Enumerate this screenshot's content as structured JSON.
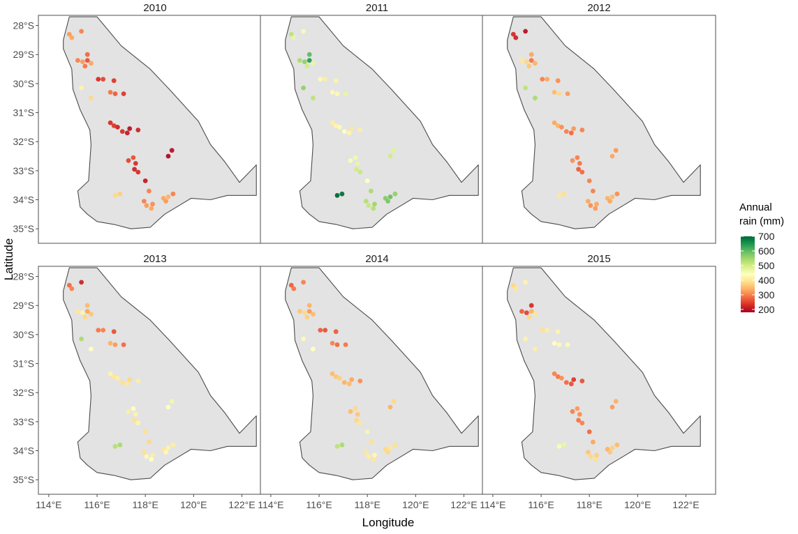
{
  "axes": {
    "xlabel": "Longitude",
    "ylabel": "Latitude",
    "xticks": [
      "114°E",
      "116°E",
      "118°E",
      "120°E",
      "122°E"
    ],
    "yticks": [
      "28°S",
      "29°S",
      "30°S",
      "31°S",
      "32°S",
      "33°S",
      "34°S",
      "35°S"
    ],
    "xlim": [
      113.8,
      123.0
    ],
    "ylim": [
      -35.5,
      -27.65
    ]
  },
  "legend": {
    "title_line1": "Annual",
    "title_line2": "rain (mm)",
    "labels": [
      "700",
      "600",
      "500",
      "400",
      "300",
      "200"
    ],
    "range": [
      180,
      700
    ],
    "colors": [
      "#006837",
      "#1a9850",
      "#66bd63",
      "#a6d96a",
      "#d9ef8b",
      "#ffffbf",
      "#fee08b",
      "#fdae61",
      "#f46d43",
      "#d73027",
      "#a50026"
    ]
  },
  "panels": [
    {
      "title": "2010"
    },
    {
      "title": "2011"
    },
    {
      "title": "2012"
    },
    {
      "title": "2013"
    },
    {
      "title": "2014"
    },
    {
      "title": "2015"
    }
  ],
  "chart_data": {
    "type": "scatter",
    "title": "",
    "xlabel": "Longitude",
    "ylabel": "Latitude",
    "facet": "year",
    "color_variable": "Annual rain (mm)",
    "region_outline": [
      [
        114.85,
        -27.7
      ],
      [
        116.0,
        -27.7
      ],
      [
        117.0,
        -28.7
      ],
      [
        118.2,
        -29.5
      ],
      [
        119.0,
        -30.2
      ],
      [
        120.2,
        -31.3
      ],
      [
        120.7,
        -32.1
      ],
      [
        121.3,
        -32.7
      ],
      [
        121.9,
        -33.4
      ],
      [
        122.6,
        -32.8
      ],
      [
        122.6,
        -33.85
      ],
      [
        121.4,
        -33.85
      ],
      [
        120.7,
        -34.0
      ],
      [
        119.9,
        -33.95
      ],
      [
        119.4,
        -34.2
      ],
      [
        118.8,
        -34.5
      ],
      [
        118.2,
        -34.95
      ],
      [
        117.4,
        -35.0
      ],
      [
        116.7,
        -34.85
      ],
      [
        116.0,
        -34.75
      ],
      [
        115.6,
        -34.5
      ],
      [
        115.3,
        -34.25
      ],
      [
        115.2,
        -33.7
      ],
      [
        115.65,
        -33.35
      ],
      [
        115.7,
        -32.7
      ],
      [
        115.75,
        -32.1
      ],
      [
        115.7,
        -31.6
      ],
      [
        115.3,
        -30.9
      ],
      [
        115.0,
        -30.2
      ],
      [
        114.95,
        -29.5
      ],
      [
        114.6,
        -28.8
      ],
      [
        114.6,
        -28.5
      ],
      [
        114.85,
        -27.7
      ]
    ],
    "sites": [
      {
        "lon": 114.85,
        "lat": -28.3
      },
      {
        "lon": 114.95,
        "lat": -28.42
      },
      {
        "lon": 115.35,
        "lat": -28.2
      },
      {
        "lon": 115.2,
        "lat": -29.2
      },
      {
        "lon": 115.4,
        "lat": -29.25
      },
      {
        "lon": 115.6,
        "lat": -29.0
      },
      {
        "lon": 115.6,
        "lat": -29.2
      },
      {
        "lon": 115.5,
        "lat": -29.4
      },
      {
        "lon": 115.75,
        "lat": -29.3
      },
      {
        "lon": 115.35,
        "lat": -30.15
      },
      {
        "lon": 115.75,
        "lat": -30.5
      },
      {
        "lon": 116.05,
        "lat": -29.85
      },
      {
        "lon": 116.25,
        "lat": -29.85
      },
      {
        "lon": 116.7,
        "lat": -29.9
      },
      {
        "lon": 116.55,
        "lat": -30.3
      },
      {
        "lon": 116.75,
        "lat": -30.35
      },
      {
        "lon": 117.1,
        "lat": -30.35
      },
      {
        "lon": 116.55,
        "lat": -31.35
      },
      {
        "lon": 116.7,
        "lat": -31.45
      },
      {
        "lon": 116.85,
        "lat": -31.5
      },
      {
        "lon": 117.05,
        "lat": -31.65
      },
      {
        "lon": 117.25,
        "lat": -31.7
      },
      {
        "lon": 117.35,
        "lat": -31.55
      },
      {
        "lon": 117.7,
        "lat": -31.6
      },
      {
        "lon": 117.3,
        "lat": -32.65
      },
      {
        "lon": 117.5,
        "lat": -32.55
      },
      {
        "lon": 117.6,
        "lat": -32.75
      },
      {
        "lon": 117.55,
        "lat": -32.95
      },
      {
        "lon": 117.7,
        "lat": -33.05
      },
      {
        "lon": 118.0,
        "lat": -33.35
      },
      {
        "lon": 118.95,
        "lat": -32.5
      },
      {
        "lon": 119.1,
        "lat": -32.3
      },
      {
        "lon": 116.75,
        "lat": -33.85
      },
      {
        "lon": 116.95,
        "lat": -33.8
      },
      {
        "lon": 118.15,
        "lat": -33.7
      },
      {
        "lon": 117.95,
        "lat": -34.05
      },
      {
        "lon": 118.05,
        "lat": -34.2
      },
      {
        "lon": 118.3,
        "lat": -34.15
      },
      {
        "lon": 118.25,
        "lat": -34.3
      },
      {
        "lon": 118.75,
        "lat": -33.95
      },
      {
        "lon": 118.95,
        "lat": -33.9
      },
      {
        "lon": 119.15,
        "lat": -33.8
      },
      {
        "lon": 118.85,
        "lat": -34.05
      }
    ],
    "series": [
      {
        "year": "2010",
        "rain_mm": [
          320,
          330,
          300,
          300,
          320,
          280,
          260,
          290,
          330,
          420,
          380,
          230,
          250,
          240,
          290,
          270,
          240,
          230,
          240,
          220,
          230,
          210,
          200,
          220,
          250,
          260,
          230,
          220,
          230,
          210,
          190,
          200,
          380,
          370,
          300,
          300,
          320,
          310,
          330,
          330,
          340,
          300,
          320
        ]
      },
      {
        "year": "2011",
        "rain_mm": [
          520,
          470,
          450,
          540,
          560,
          600,
          640,
          500,
          470,
          560,
          520,
          450,
          410,
          420,
          430,
          450,
          470,
          410,
          420,
          430,
          440,
          420,
          400,
          410,
          450,
          460,
          470,
          500,
          510,
          440,
          500,
          480,
          700,
          690,
          540,
          530,
          510,
          550,
          530,
          570,
          590,
          560,
          580
        ]
      },
      {
        "year": "2012",
        "rain_mm": [
          230,
          220,
          200,
          400,
          380,
          330,
          290,
          360,
          340,
          520,
          540,
          300,
          330,
          310,
          350,
          380,
          320,
          330,
          340,
          310,
          300,
          280,
          320,
          300,
          310,
          300,
          290,
          270,
          280,
          300,
          330,
          320,
          400,
          390,
          300,
          330,
          310,
          330,
          320,
          340,
          350,
          310,
          330
        ]
      },
      {
        "year": "2013",
        "rain_mm": [
          280,
          300,
          220,
          400,
          420,
          350,
          330,
          380,
          360,
          540,
          440,
          290,
          300,
          260,
          340,
          320,
          280,
          420,
          400,
          410,
          390,
          400,
          380,
          410,
          410,
          440,
          420,
          390,
          420,
          390,
          440,
          460,
          530,
          540,
          380,
          390,
          430,
          410,
          440,
          400,
          420,
          410,
          430
        ]
      },
      {
        "year": "2014",
        "rain_mm": [
          270,
          290,
          300,
          360,
          380,
          340,
          320,
          370,
          350,
          430,
          440,
          270,
          260,
          270,
          300,
          280,
          290,
          350,
          360,
          370,
          340,
          350,
          330,
          310,
          350,
          380,
          360,
          380,
          400,
          420,
          340,
          380,
          520,
          540,
          390,
          400,
          410,
          430,
          400,
          380,
          400,
          390,
          380
        ]
      },
      {
        "year": "2015",
        "rain_mm": [
          380,
          400,
          420,
          270,
          250,
          230,
          340,
          380,
          400,
          420,
          410,
          390,
          410,
          420,
          440,
          430,
          430,
          300,
          290,
          310,
          280,
          260,
          240,
          260,
          300,
          320,
          310,
          290,
          300,
          280,
          320,
          340,
          450,
          470,
          330,
          360,
          380,
          370,
          390,
          340,
          370,
          350,
          360
        ]
      }
    ],
    "legend": {
      "title": "Annual rain (mm)",
      "values": [
        200,
        300,
        400,
        500,
        600,
        700
      ],
      "placement": "right"
    }
  }
}
